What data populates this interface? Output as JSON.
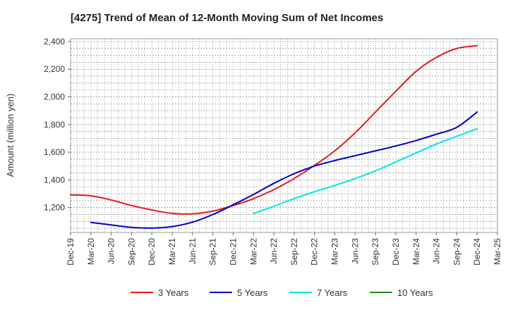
{
  "chart_data": {
    "type": "line",
    "title": "[4275]  Trend of Mean of 12-Month Moving Sum of Net Incomes",
    "ylabel": "Amount (million yen)",
    "xlabel": "",
    "x_ticks": [
      "Dec-19",
      "Mar-20",
      "Jun-20",
      "Sep-20",
      "Dec-20",
      "Mar-21",
      "Jun-21",
      "Sep-21",
      "Dec-21",
      "Mar-22",
      "Jun-22",
      "Sep-22",
      "Dec-22",
      "Mar-23",
      "Jun-23",
      "Sep-23",
      "Dec-23",
      "Mar-24",
      "Jun-24",
      "Sep-24",
      "Dec-24",
      "Mar-25"
    ],
    "y_ticks": [
      "1,200",
      "1,400",
      "1,600",
      "1,800",
      "2,000",
      "2,200",
      "2,400"
    ],
    "y_tick_values": [
      1200,
      1400,
      1600,
      1800,
      2000,
      2200,
      2400
    ],
    "ylim": [
      1020,
      2420
    ],
    "grid": true,
    "legend_position": "bottom",
    "series": [
      {
        "name": "3 Years",
        "color": "#e41a1c",
        "points": [
          [
            "Dec-19",
            1292
          ],
          [
            "Mar-20",
            1285
          ],
          [
            "Jun-20",
            1255
          ],
          [
            "Sep-20",
            1215
          ],
          [
            "Dec-20",
            1183
          ],
          [
            "Mar-21",
            1158
          ],
          [
            "Jun-21",
            1155
          ],
          [
            "Sep-21",
            1175
          ],
          [
            "Dec-21",
            1215
          ],
          [
            "Mar-22",
            1265
          ],
          [
            "Jun-22",
            1330
          ],
          [
            "Sep-22",
            1410
          ],
          [
            "Dec-22",
            1505
          ],
          [
            "Mar-23",
            1610
          ],
          [
            "Jun-23",
            1740
          ],
          [
            "Sep-23",
            1890
          ],
          [
            "Dec-23",
            2040
          ],
          [
            "Mar-24",
            2185
          ],
          [
            "Jun-24",
            2285
          ],
          [
            "Sep-24",
            2350
          ],
          [
            "Dec-24",
            2370
          ]
        ]
      },
      {
        "name": "5 Years",
        "color": "#0000cc",
        "points": [
          [
            "Mar-20",
            1093
          ],
          [
            "Jun-20",
            1075
          ],
          [
            "Sep-20",
            1057
          ],
          [
            "Dec-20",
            1052
          ],
          [
            "Mar-21",
            1063
          ],
          [
            "Jun-21",
            1095
          ],
          [
            "Sep-21",
            1150
          ],
          [
            "Dec-21",
            1220
          ],
          [
            "Mar-22",
            1295
          ],
          [
            "Jun-22",
            1375
          ],
          [
            "Sep-22",
            1445
          ],
          [
            "Dec-22",
            1500
          ],
          [
            "Mar-23",
            1540
          ],
          [
            "Jun-23",
            1575
          ],
          [
            "Sep-23",
            1610
          ],
          [
            "Dec-23",
            1645
          ],
          [
            "Mar-24",
            1685
          ],
          [
            "Jun-24",
            1730
          ],
          [
            "Sep-24",
            1780
          ],
          [
            "Dec-24",
            1890
          ]
        ]
      },
      {
        "name": "7 Years",
        "color": "#00e5e5",
        "points": [
          [
            "Mar-22",
            1158
          ],
          [
            "Jun-22",
            1210
          ],
          [
            "Sep-22",
            1265
          ],
          [
            "Dec-22",
            1315
          ],
          [
            "Mar-23",
            1360
          ],
          [
            "Jun-23",
            1410
          ],
          [
            "Sep-23",
            1465
          ],
          [
            "Dec-23",
            1530
          ],
          [
            "Mar-24",
            1595
          ],
          [
            "Jun-24",
            1660
          ],
          [
            "Sep-24",
            1715
          ],
          [
            "Dec-24",
            1770
          ]
        ]
      },
      {
        "name": "10 Years",
        "color": "#228b22",
        "points": []
      }
    ]
  }
}
